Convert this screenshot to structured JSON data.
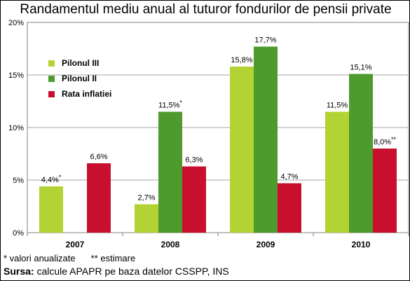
{
  "title": "Randamentul mediu anual al tuturor fondurilor de pensii private",
  "footnote": {
    "note1": "* valori anualizate",
    "note2": "** estimare"
  },
  "source": {
    "label": "Sursa:",
    "text": " calcule APAPR pe baza datelor CSSPP, INS"
  },
  "chart_data": {
    "type": "bar",
    "title": "Randamentul mediu anual al tuturor fondurilor de pensii private",
    "categories": [
      "2007",
      "2008",
      "2009",
      "2010"
    ],
    "series": [
      {
        "name": "Pilonul III",
        "color": "#b3d334",
        "values": [
          4.4,
          2.7,
          15.8,
          11.5
        ],
        "labels": [
          "4,4%*",
          "2,7%",
          "15,8%",
          "11,5%"
        ]
      },
      {
        "name": "Pilonul II",
        "color": "#4e9a2c",
        "values": [
          null,
          11.5,
          17.7,
          15.1
        ],
        "labels": [
          "",
          "11,5%*",
          "17,7%",
          "15,1%"
        ]
      },
      {
        "name": "Rata inflatiei",
        "color": "#c8102e",
        "values": [
          6.6,
          6.3,
          4.7,
          8.0
        ],
        "labels": [
          "6,6%",
          "6,3%",
          "4,7%",
          "8,0%**"
        ]
      }
    ],
    "yticks": [
      "0%",
      "5%",
      "10%",
      "15%",
      "20%"
    ],
    "ylim": [
      0,
      20
    ],
    "grid": true,
    "legend": "top-left"
  }
}
